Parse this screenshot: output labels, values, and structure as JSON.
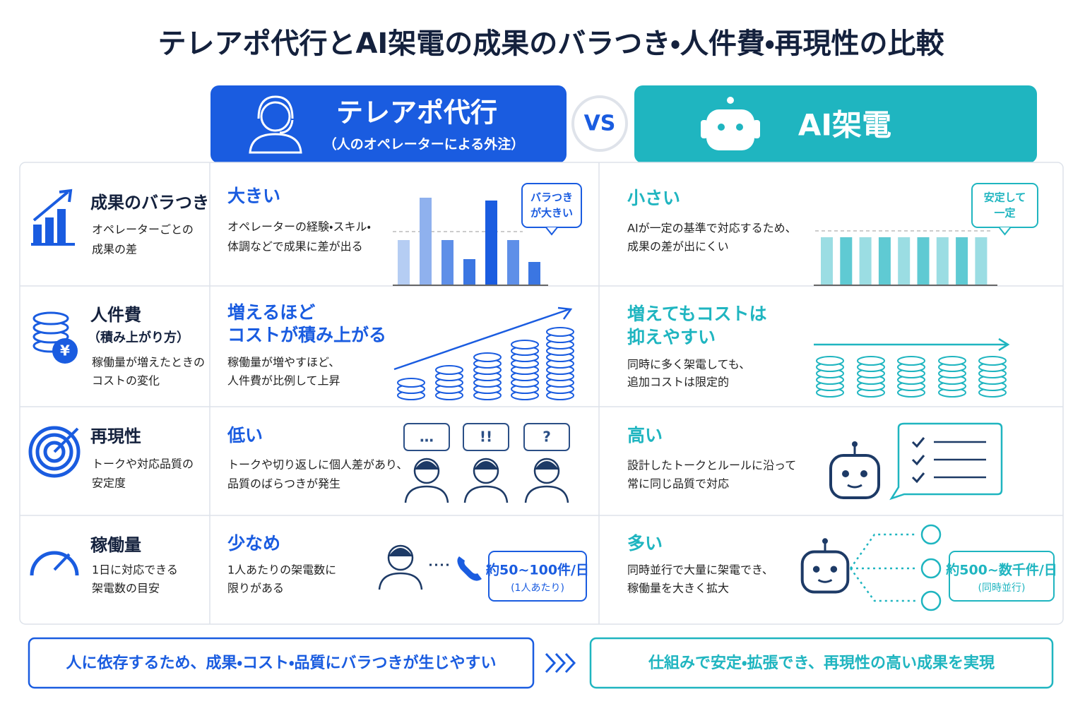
{
  "title": "テレアポ代行とAI架電の成果のバラつき・人件費・再現性の比較",
  "left_header": {
    "title": "テレアポ代行",
    "subtitle": "（人のオペレーターによる外注）"
  },
  "vs": "VS",
  "right_header": {
    "title": "AI架電"
  },
  "rows": [
    {
      "label": "成果のバラつき",
      "description": [
        "オペレーターごとの",
        "成果の差"
      ],
      "left": {
        "heading": [
          "大きい"
        ],
        "text": [
          "オペレーターの経験・スキル・",
          "体調などで成果に差が出る"
        ],
        "callout": [
          "バラつき",
          "が大きい"
        ]
      },
      "right": {
        "heading": [
          "小さい"
        ],
        "text": [
          "AIが一定の基準で対応するため、",
          "成果の差が出にくい"
        ],
        "callout": [
          "安定して",
          "一定"
        ]
      }
    },
    {
      "label": "人件費",
      "sublabel": "（積み上がり方）",
      "description": [
        "稼働量が増えたときの",
        "コストの変化"
      ],
      "left": {
        "heading": [
          "増えるほど",
          "コストが積み上がる"
        ],
        "text": [
          "稼働量が増やすほど、",
          "人件費が比例して上昇"
        ]
      },
      "right": {
        "heading": [
          "増えてもコストは",
          "抑えやすい"
        ],
        "text": [
          "同時に多く架電しても、",
          "追加コストは限定的"
        ]
      }
    },
    {
      "label": "再現性",
      "description": [
        "トークや対応品質の",
        "安定度"
      ],
      "left": {
        "heading": [
          "低い"
        ],
        "text": [
          "トークや切り返しに個人差があり、",
          "品質のばらつきが発生"
        ],
        "bubbles": [
          "…",
          "!!",
          "?"
        ]
      },
      "right": {
        "heading": [
          "高い"
        ],
        "text": [
          "設計したトークとルールに沿って",
          "常に同じ品質で対応"
        ]
      }
    },
    {
      "label": "稼働量",
      "description": [
        "1日に対応できる",
        "架電数の目安"
      ],
      "left": {
        "heading": [
          "少なめ"
        ],
        "text": [
          "1人あたりの架電数に",
          "限りがある"
        ],
        "badge": {
          "main": "約50~100件/日",
          "sub": "(1人あたり)"
        }
      },
      "right": {
        "heading": [
          "多い"
        ],
        "text": [
          "同時並行で大量に架電でき、",
          "稼働量を大きく拡大"
        ],
        "badge": {
          "main": "約500~数千件/日",
          "sub": "(同時並行)"
        }
      }
    }
  ],
  "footer": {
    "left": "人に依存するため、成果・コスト・品質にバラつきが生じやすい",
    "right": "仕組みで安定・拡張でき、再現性の高い成果を実現"
  }
}
